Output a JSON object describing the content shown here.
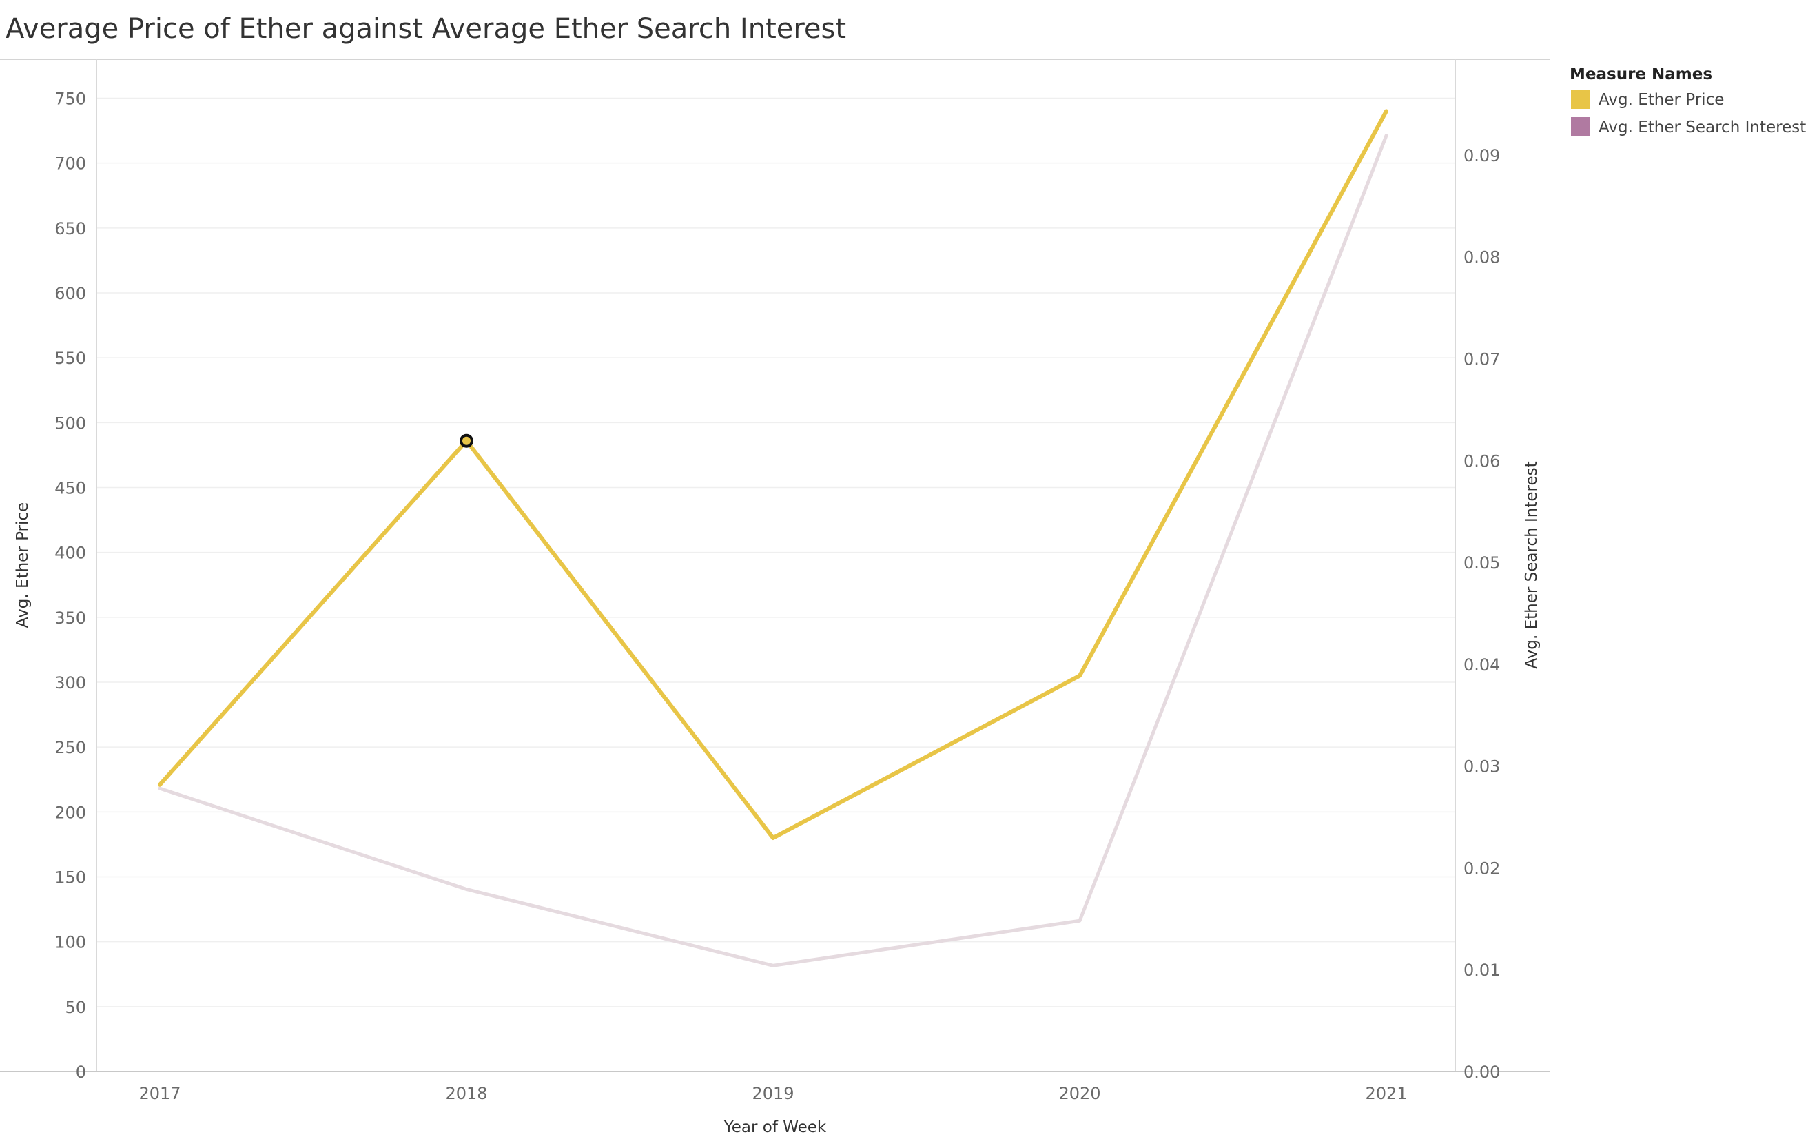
{
  "chart_data": {
    "type": "line",
    "title": "Average Price of Ether against Average Ether Search Interest",
    "xlabel": "Year of Week",
    "ylabel": "Avg. Ether Price",
    "y2label": "Avg. Ether Search Interest",
    "categories": [
      "2017",
      "2018",
      "2019",
      "2020",
      "2021"
    ],
    "ylim": [
      0,
      780
    ],
    "y2lim": [
      0,
      0.0994
    ],
    "y_ticks": [
      "0",
      "50",
      "100",
      "150",
      "200",
      "250",
      "300",
      "350",
      "400",
      "450",
      "500",
      "550",
      "600",
      "650",
      "700",
      "750"
    ],
    "y2_ticks": [
      "0.00",
      "0.01",
      "0.02",
      "0.03",
      "0.04",
      "0.05",
      "0.06",
      "0.07",
      "0.08",
      "0.09"
    ],
    "grid": true,
    "legend": {
      "title": "Measure Names",
      "placement": "top-right"
    },
    "highlighted_point": {
      "series": "Avg. Ether Price",
      "category": "2018"
    },
    "series": [
      {
        "name": "Avg. Ether Price",
        "axis": "left",
        "color": "#E8C547",
        "values": [
          221,
          486,
          180,
          305,
          740
        ]
      },
      {
        "name": "Avg. Ether Search Interest",
        "axis": "right",
        "color": "#B07AA1",
        "line_color": "#E5DADF",
        "values": [
          0.0278,
          0.0179,
          0.0104,
          0.0148,
          0.0919
        ]
      }
    ]
  }
}
